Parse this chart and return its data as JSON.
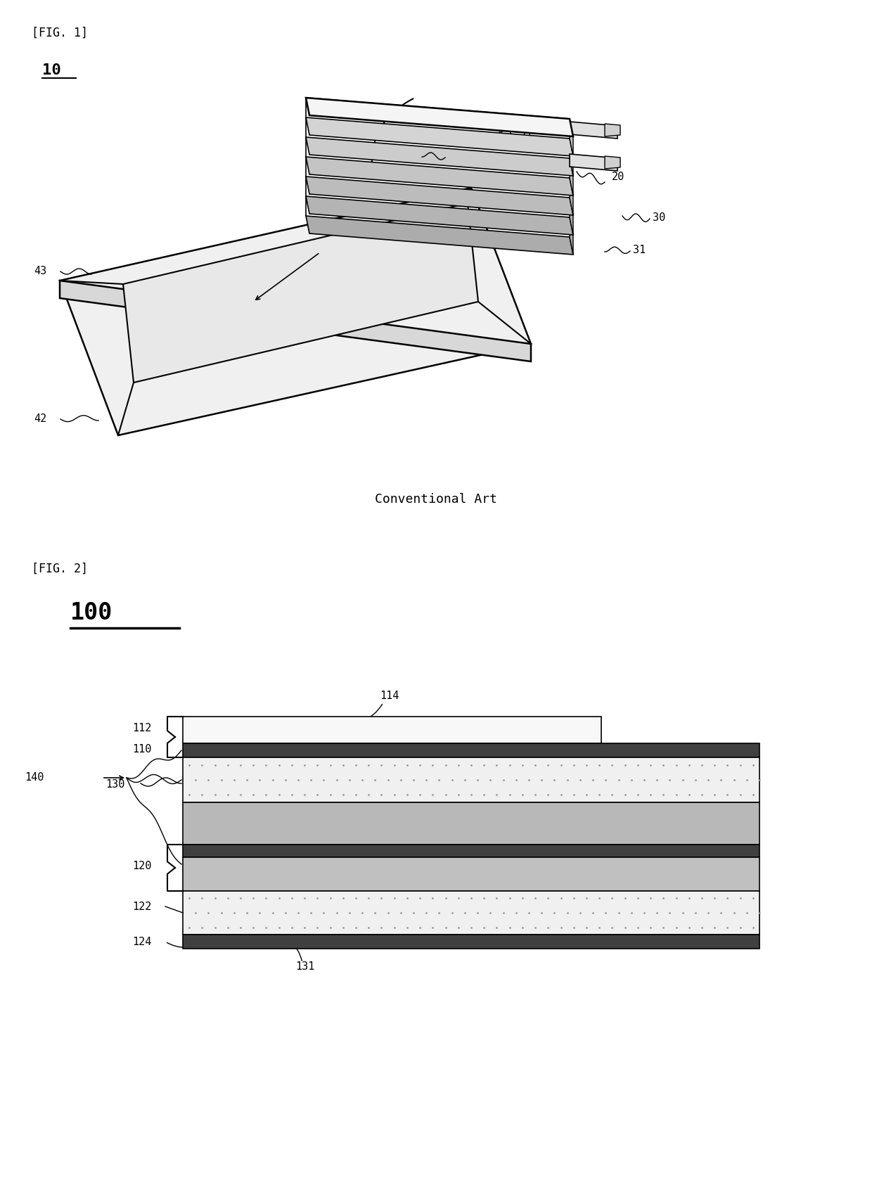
{
  "fig1_label": "[FIG. 1]",
  "fig1_num": "10",
  "fig2_label": "[FIG. 2]",
  "fig2_num": "100",
  "conventional_art": "Conventional Art",
  "bg_color": "#ffffff",
  "lc": "#000000",
  "fs_label": 12,
  "fs_num": 14,
  "fs_ref": 11
}
